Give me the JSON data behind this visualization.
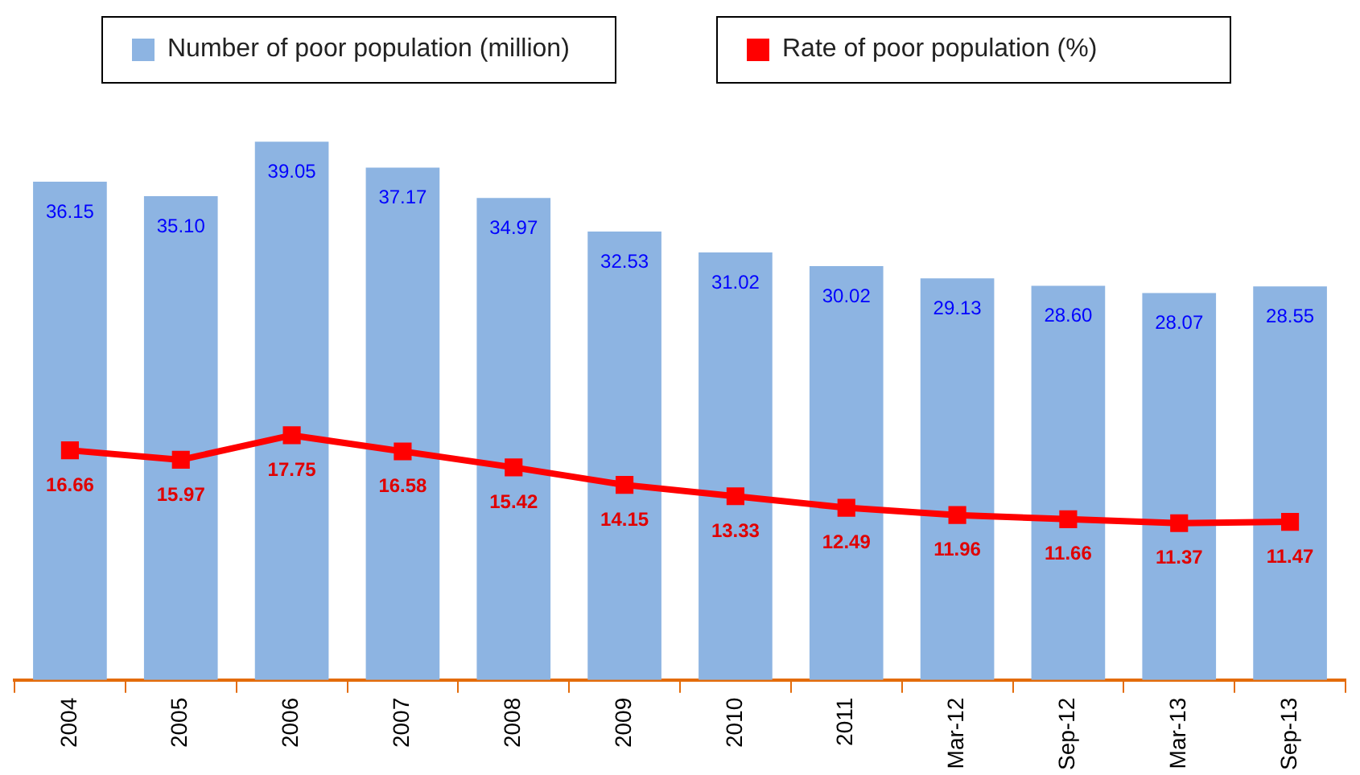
{
  "chart_data": {
    "type": "bar",
    "categories": [
      "2004",
      "2005",
      "2006",
      "2007",
      "2008",
      "2009",
      "2010",
      "2011",
      "Mar-12",
      "Sep-12",
      "Mar-13",
      "Sep-13"
    ],
    "series": [
      {
        "name": "Number of poor population (million)",
        "color": "#8db4e2",
        "values": [
          36.15,
          35.1,
          39.05,
          37.17,
          34.97,
          32.53,
          31.02,
          30.02,
          29.13,
          28.6,
          28.07,
          28.55
        ],
        "value_labels": [
          "36.15",
          "35.10",
          "39.05",
          "37.17",
          "34.97",
          "32.53",
          "31.02",
          "30.02",
          "29.13",
          "28.60",
          "28.07",
          "28.55"
        ]
      },
      {
        "name": "Rate of poor population (%)",
        "type": "line",
        "color": "#ff0000",
        "marker": "square",
        "values": [
          16.66,
          15.97,
          17.75,
          16.58,
          15.42,
          14.15,
          13.33,
          12.49,
          11.96,
          11.66,
          11.37,
          11.47
        ],
        "value_labels": [
          "16.66",
          "15.97",
          "17.75",
          "16.58",
          "15.42",
          "14.15",
          "13.33",
          "12.49",
          "11.96",
          "11.66",
          "11.37",
          "11.47"
        ]
      }
    ],
    "legend": "top",
    "grid": false
  }
}
